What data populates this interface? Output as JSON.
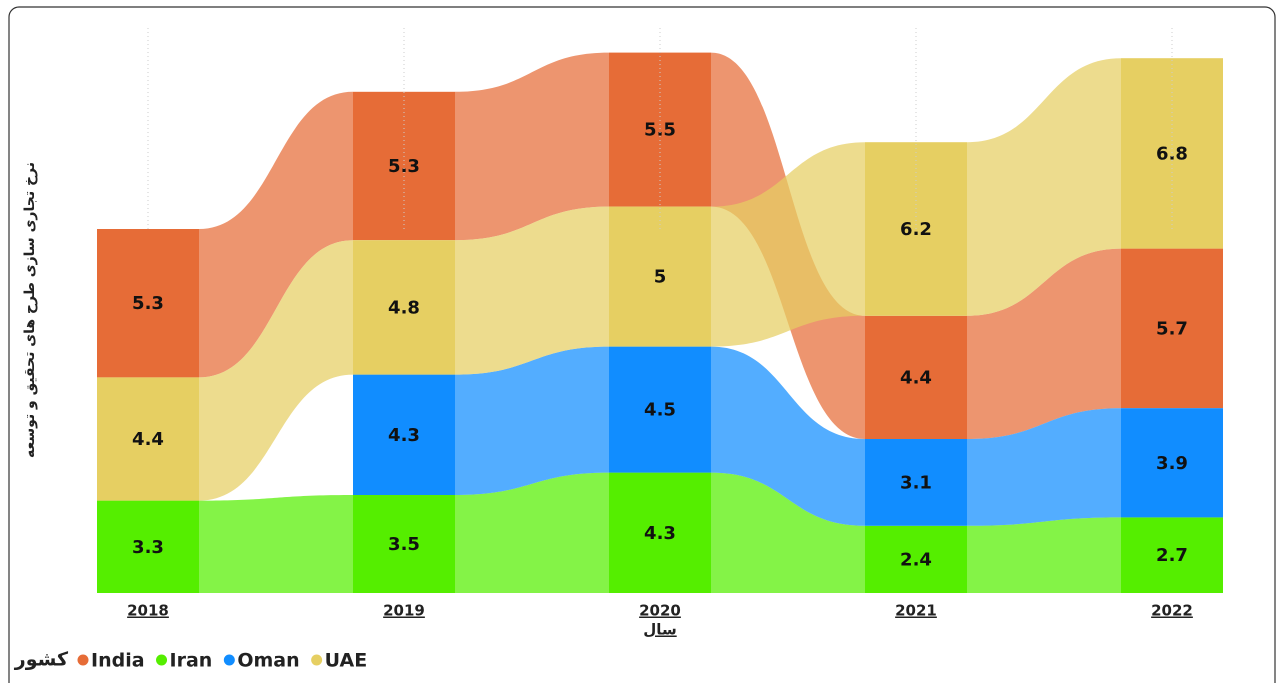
{
  "chart_data": {
    "type": "ribbon",
    "y_label": "نرخ تجاری سازی طرح های تحقیق و توسعه",
    "x_label": "سال",
    "legend_title": "کشور",
    "categories": [
      "2018",
      "2019",
      "2020",
      "2021",
      "2022"
    ],
    "series": [
      {
        "name": "India",
        "color": "#e66c37",
        "values": [
          5.3,
          5.3,
          5.5,
          4.4,
          5.7
        ]
      },
      {
        "name": "Iran",
        "color": "#55ee00",
        "values": [
          3.3,
          3.5,
          4.3,
          2.4,
          2.7
        ]
      },
      {
        "name": "Oman",
        "color": "#118dff",
        "values": [
          null,
          4.3,
          4.5,
          3.1,
          3.9
        ]
      },
      {
        "name": "UAE",
        "color": "#e6cf62",
        "values": [
          4.4,
          4.8,
          5.0,
          6.2,
          6.8
        ]
      }
    ]
  }
}
